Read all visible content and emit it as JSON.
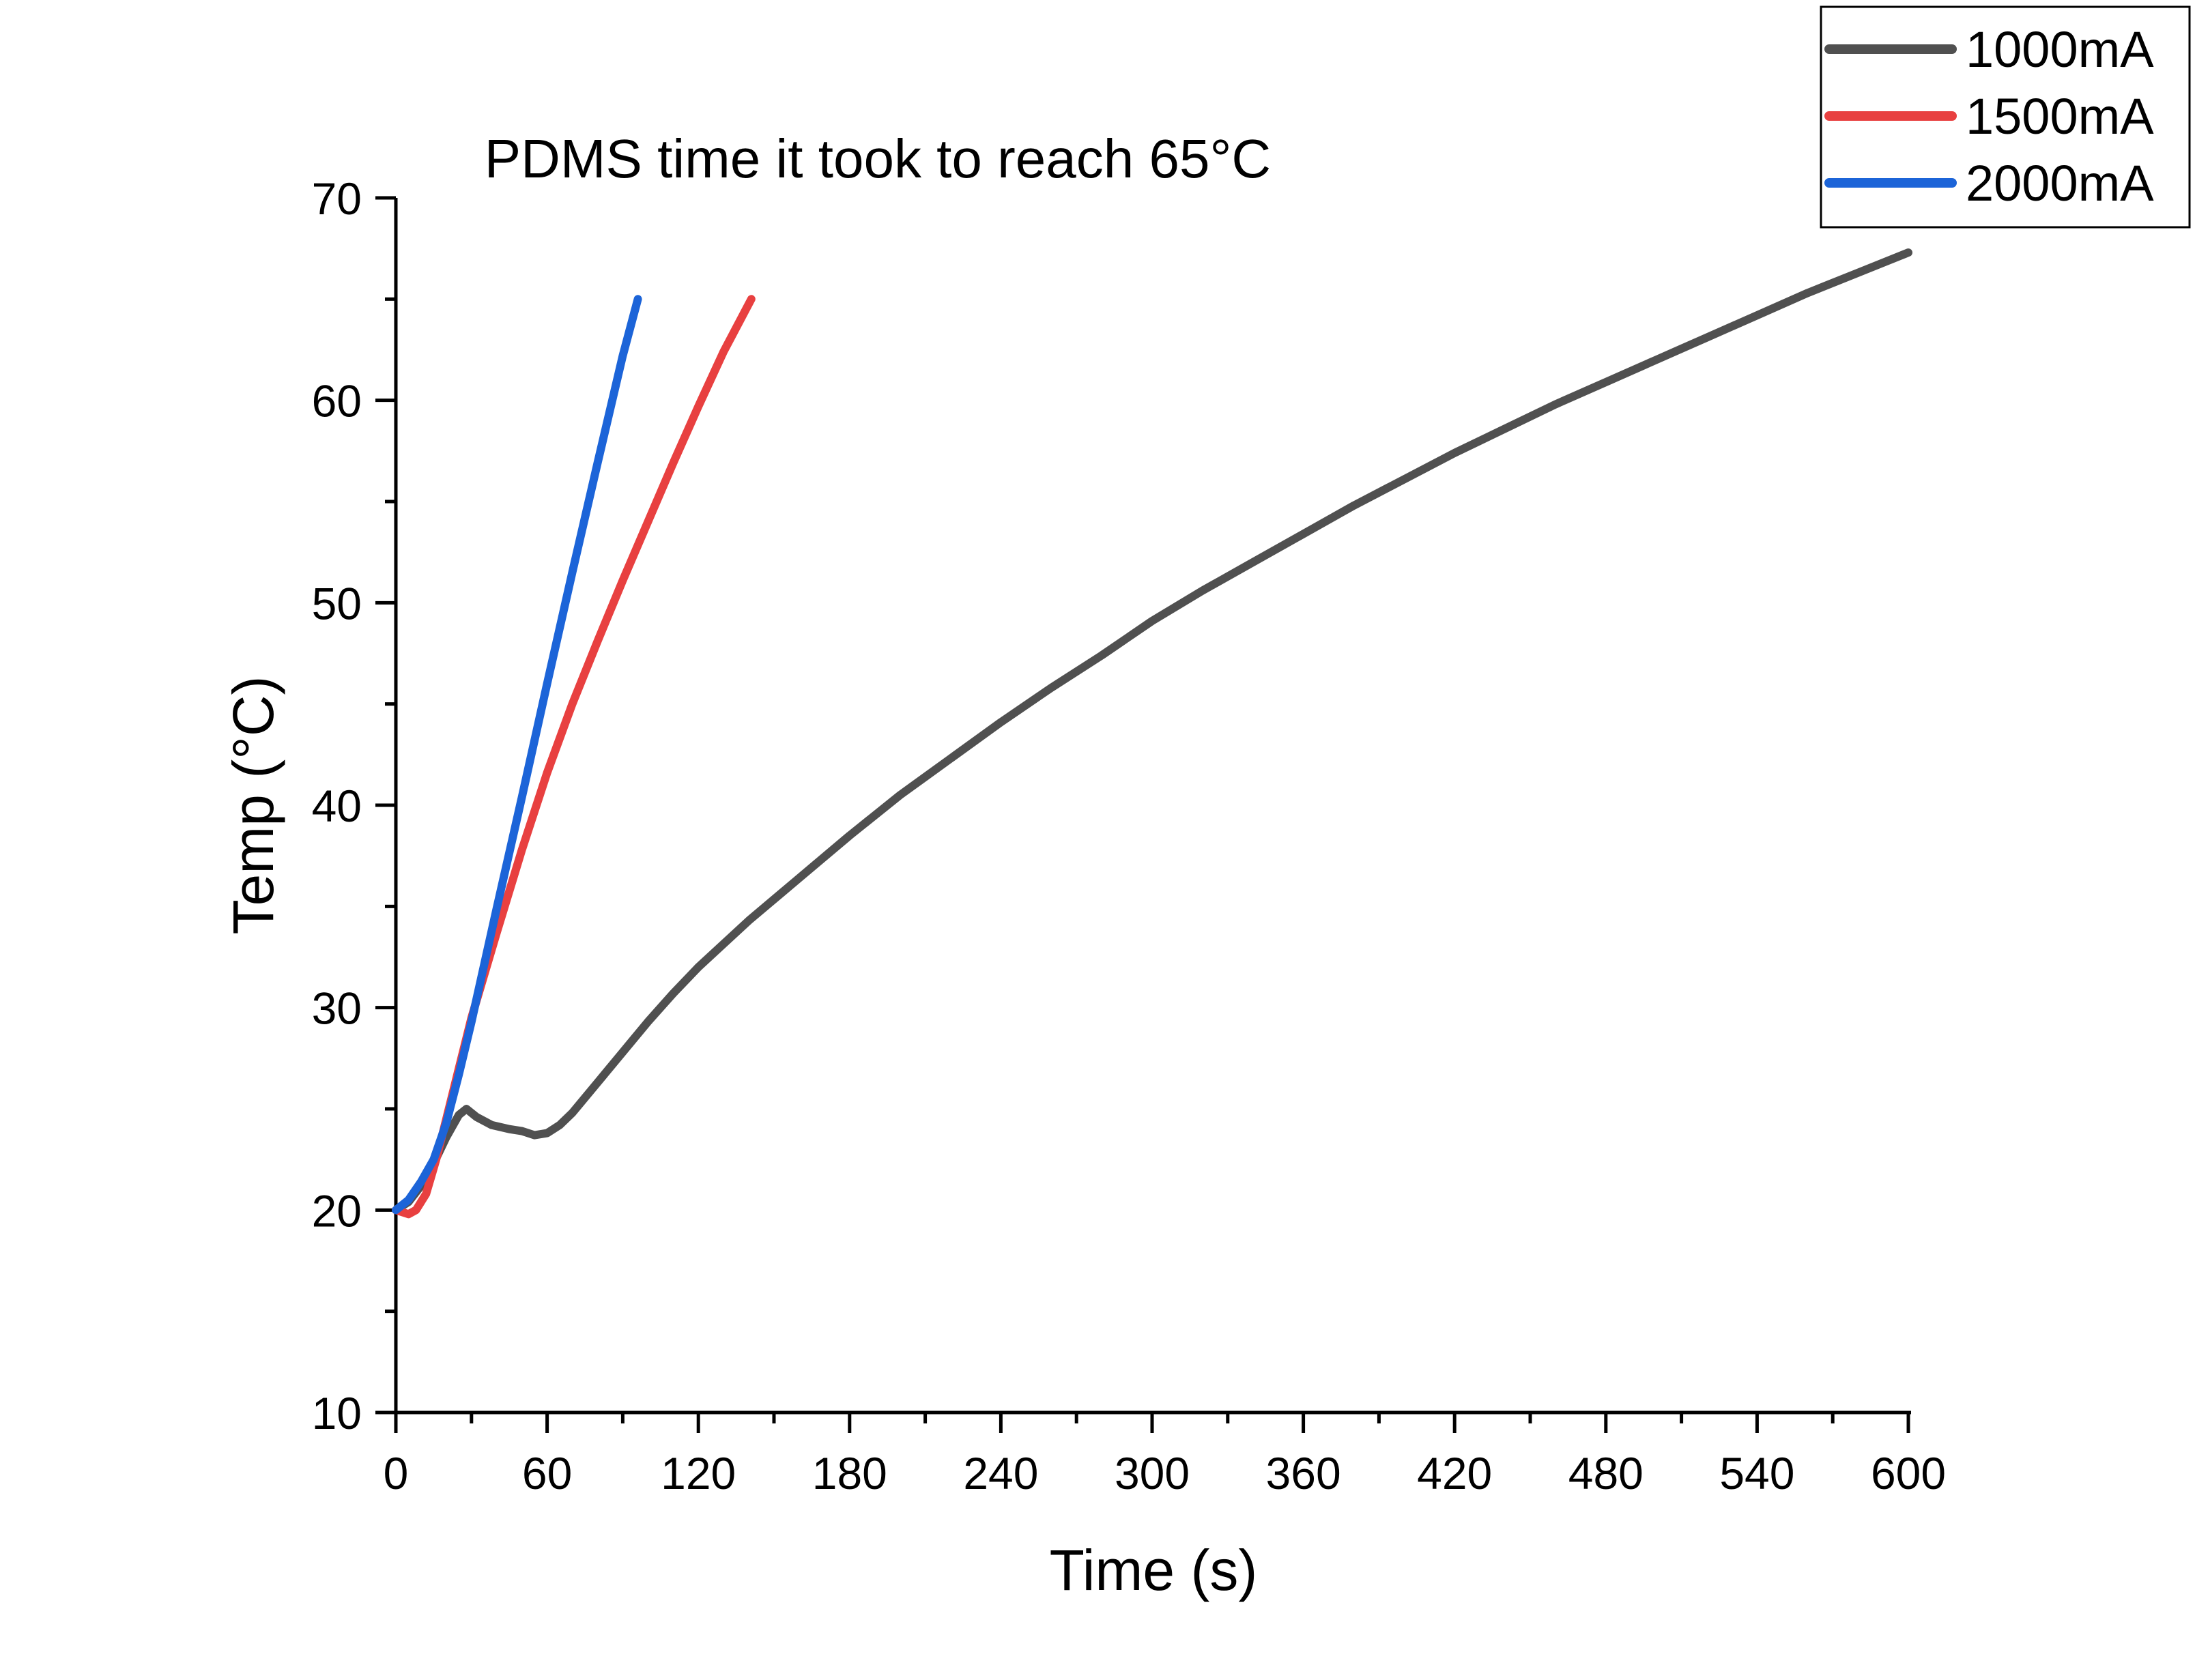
{
  "chart_data": {
    "type": "line",
    "title": "PDMS time it took to reach 65°C",
    "xlabel": "Time (s)",
    "ylabel": "Temp (°C)",
    "xlim": [
      0,
      600
    ],
    "ylim": [
      10,
      70
    ],
    "xticks": [
      0,
      60,
      120,
      180,
      240,
      300,
      360,
      420,
      480,
      540,
      600
    ],
    "yticks": [
      10,
      20,
      30,
      40,
      50,
      60,
      70
    ],
    "grid": false,
    "legend_position": "top-right",
    "series": [
      {
        "name": "1000mA",
        "color": "#505050",
        "points": [
          [
            0,
            20
          ],
          [
            5,
            20.4
          ],
          [
            10,
            21.2
          ],
          [
            15,
            22.3
          ],
          [
            20,
            23.6
          ],
          [
            25,
            24.7
          ],
          [
            28,
            25
          ],
          [
            32,
            24.6
          ],
          [
            38,
            24.2
          ],
          [
            45,
            24
          ],
          [
            50,
            23.9
          ],
          [
            55,
            23.7
          ],
          [
            60,
            23.8
          ],
          [
            65,
            24.2
          ],
          [
            70,
            24.8
          ],
          [
            80,
            26.3
          ],
          [
            90,
            27.8
          ],
          [
            100,
            29.3
          ],
          [
            110,
            30.7
          ],
          [
            120,
            32
          ],
          [
            140,
            34.3
          ],
          [
            160,
            36.4
          ],
          [
            180,
            38.5
          ],
          [
            200,
            40.5
          ],
          [
            220,
            42.3
          ],
          [
            240,
            44.1
          ],
          [
            260,
            45.8
          ],
          [
            280,
            47.4
          ],
          [
            300,
            49.1
          ],
          [
            320,
            50.6
          ],
          [
            340,
            52
          ],
          [
            360,
            53.4
          ],
          [
            380,
            54.8
          ],
          [
            400,
            56.1
          ],
          [
            420,
            57.4
          ],
          [
            440,
            58.6
          ],
          [
            460,
            59.8
          ],
          [
            480,
            60.9
          ],
          [
            500,
            62
          ],
          [
            520,
            63.1
          ],
          [
            540,
            64.2
          ],
          [
            560,
            65.3
          ],
          [
            580,
            66.3
          ],
          [
            600,
            67.3
          ]
        ]
      },
      {
        "name": "1500mA",
        "color": "#e84040",
        "points": [
          [
            0,
            20
          ],
          [
            5,
            19.8
          ],
          [
            8,
            20
          ],
          [
            12,
            20.8
          ],
          [
            16,
            22.5
          ],
          [
            20,
            24.5
          ],
          [
            25,
            27
          ],
          [
            30,
            29.5
          ],
          [
            40,
            33.7
          ],
          [
            50,
            37.8
          ],
          [
            60,
            41.6
          ],
          [
            70,
            45
          ],
          [
            80,
            48.1
          ],
          [
            90,
            51.1
          ],
          [
            100,
            54
          ],
          [
            110,
            56.9
          ],
          [
            120,
            59.7
          ],
          [
            130,
            62.4
          ],
          [
            141,
            65
          ]
        ]
      },
      {
        "name": "2000mA",
        "color": "#1c64d8",
        "points": [
          [
            0,
            20
          ],
          [
            5,
            20.5
          ],
          [
            10,
            21.4
          ],
          [
            15,
            22.5
          ],
          [
            20,
            24.3
          ],
          [
            25,
            26.7
          ],
          [
            30,
            29.3
          ],
          [
            40,
            34.9
          ],
          [
            50,
            40.4
          ],
          [
            60,
            46
          ],
          [
            70,
            51.5
          ],
          [
            80,
            56.9
          ],
          [
            90,
            62.2
          ],
          [
            96,
            65
          ]
        ]
      }
    ]
  }
}
